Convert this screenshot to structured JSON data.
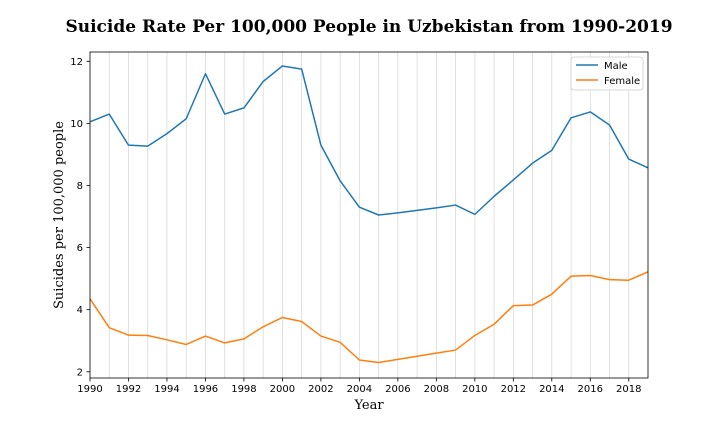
{
  "chart_data": {
    "type": "line",
    "title": "Suicide Rate Per 100,000 People in Uzbekistan from 1990-2019",
    "xlabel": "Year",
    "ylabel": "Suicides per 100,000 people",
    "xlim": [
      1990,
      2019
    ],
    "ylim": [
      1.8,
      12.3
    ],
    "x_ticks": [
      1990,
      1992,
      1994,
      1996,
      1998,
      2000,
      2002,
      2004,
      2006,
      2008,
      2010,
      2012,
      2014,
      2016,
      2018
    ],
    "y_ticks": [
      2,
      4,
      6,
      8,
      10,
      12
    ],
    "grid": "vertical",
    "legend_position": "top-right",
    "x": [
      1990,
      1991,
      1992,
      1993,
      1994,
      1995,
      1996,
      1997,
      1998,
      1999,
      2000,
      2001,
      2002,
      2003,
      2004,
      2005,
      2006,
      2007,
      2008,
      2009,
      2010,
      2011,
      2012,
      2013,
      2014,
      2015,
      2016,
      2017,
      2018,
      2019
    ],
    "series": [
      {
        "name": "Male",
        "color": "#1f77b4",
        "values": [
          10.05,
          10.3,
          9.3,
          9.27,
          9.67,
          10.15,
          11.6,
          10.3,
          10.5,
          11.35,
          11.85,
          11.75,
          9.3,
          8.15,
          7.3,
          7.05,
          7.12,
          7.2,
          7.28,
          7.37,
          7.07,
          7.65,
          8.18,
          8.72,
          9.13,
          10.18,
          10.37,
          9.95,
          8.85,
          8.57
        ]
      },
      {
        "name": "Female",
        "color": "#ff7f0e",
        "values": [
          4.35,
          3.42,
          3.18,
          3.17,
          3.03,
          2.88,
          3.15,
          2.93,
          3.06,
          3.45,
          3.75,
          3.62,
          3.15,
          2.95,
          2.38,
          2.3,
          2.4,
          2.5,
          2.6,
          2.7,
          3.17,
          3.53,
          4.13,
          4.15,
          4.5,
          5.08,
          5.1,
          4.97,
          4.95,
          5.22
        ]
      }
    ]
  }
}
